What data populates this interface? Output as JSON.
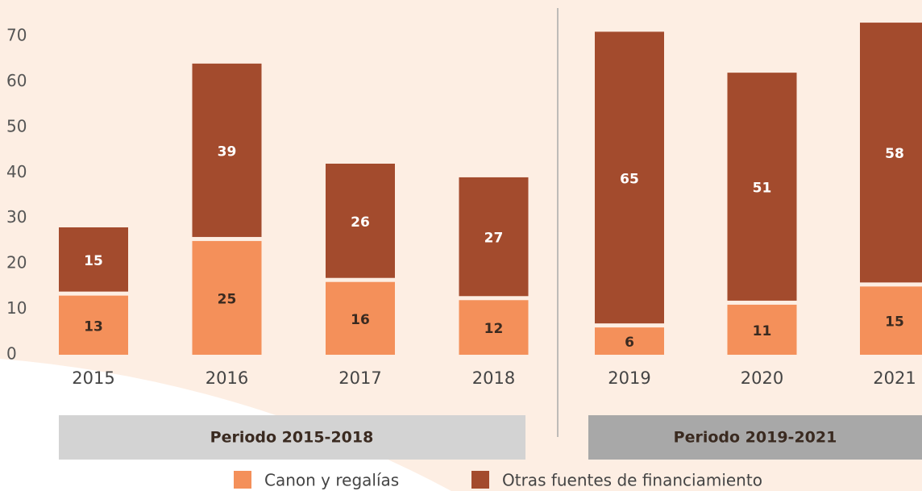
{
  "chart_data": {
    "type": "stacked_bar",
    "categories": [
      "2015",
      "2016",
      "2017",
      "2018",
      "2019",
      "2020",
      "2021"
    ],
    "series": [
      {
        "name": "Canon y regalías",
        "color": "#f4905a",
        "values": [
          13,
          25,
          16,
          12,
          6,
          11,
          15
        ]
      },
      {
        "name": "Otras fuentes de financiamiento",
        "color": "#a34b2d",
        "values": [
          15,
          39,
          26,
          27,
          65,
          51,
          58
        ]
      }
    ],
    "periods": [
      "Periodo 2015-2018",
      "Periodo 2019-2021"
    ],
    "ylim": [
      0,
      70
    ],
    "yticks": [
      0,
      10,
      20,
      30,
      40,
      50,
      60,
      70
    ]
  }
}
